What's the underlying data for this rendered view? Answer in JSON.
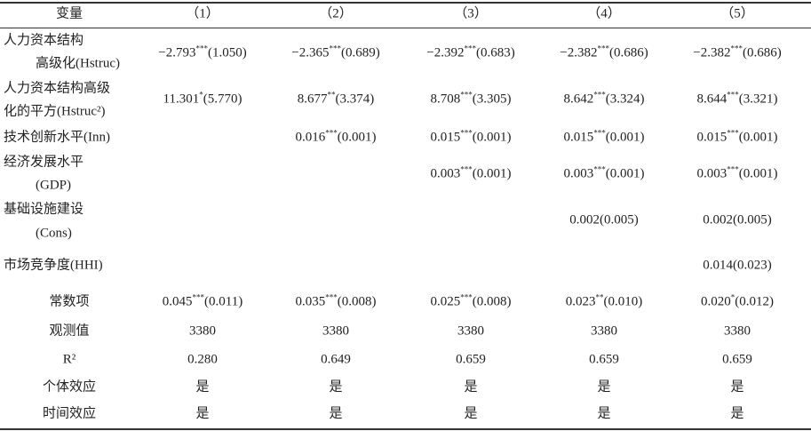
{
  "header": [
    "变量",
    "（1）",
    "（2）",
    "（3）",
    "（4）",
    "（5）"
  ],
  "rows": [
    {
      "name": [
        "人力资本结构",
        "高级化(Hstruc)"
      ],
      "cells": [
        {
          "coef": "−2.793",
          "stars": "***",
          "se": "(1.050)"
        },
        {
          "coef": "−2.365",
          "stars": "***",
          "se": "(0.689)"
        },
        {
          "coef": "−2.392",
          "stars": "***",
          "se": "(0.683)"
        },
        {
          "coef": "−2.382",
          "stars": "***",
          "se": "(0.686)"
        },
        {
          "coef": "−2.382",
          "stars": "***",
          "se": "(0.686)"
        }
      ]
    },
    {
      "name": [
        "人力资本结构高级",
        "化的平方(Hstruc²)"
      ],
      "cells": [
        {
          "coef": "11.301",
          "stars": "*",
          "se": "(5.770)"
        },
        {
          "coef": "8.677",
          "stars": "**",
          "se": "(3.374)"
        },
        {
          "coef": "8.708",
          "stars": "***",
          "se": "(3.305)"
        },
        {
          "coef": "8.642",
          "stars": "***",
          "se": "(3.324)"
        },
        {
          "coef": "8.644",
          "stars": "***",
          "se": "(3.321)"
        }
      ]
    },
    {
      "name": [
        "技术创新水平(Inn)"
      ],
      "cells": [
        null,
        {
          "coef": "0.016",
          "stars": "***",
          "se": "(0.001)"
        },
        {
          "coef": "0.015",
          "stars": "***",
          "se": "(0.001)"
        },
        {
          "coef": "0.015",
          "stars": "***",
          "se": "(0.001)"
        },
        {
          "coef": "0.015",
          "stars": "***",
          "se": "(0.001)"
        }
      ]
    },
    {
      "name": [
        "经济发展水平",
        "(GDP)"
      ],
      "cells": [
        null,
        null,
        {
          "coef": "0.003",
          "stars": "***",
          "se": "(0.001)"
        },
        {
          "coef": "0.003",
          "stars": "***",
          "se": "(0.001)"
        },
        {
          "coef": "0.003",
          "stars": "***",
          "se": "(0.001)"
        }
      ]
    },
    {
      "name": [
        "基础设施建设",
        "(Cons)"
      ],
      "cells": [
        null,
        null,
        null,
        {
          "coef": "0.002",
          "se": "(0.005)"
        },
        {
          "coef": "0.002",
          "se": "(0.005)"
        }
      ]
    },
    {
      "name": [
        "市场竞争度(HHI)"
      ],
      "cells": [
        null,
        null,
        null,
        null,
        {
          "coef": "0.014",
          "se": "(0.023)"
        }
      ]
    },
    {
      "name": [
        "常数项"
      ],
      "cells": [
        {
          "coef": "0.045",
          "stars": "***",
          "se": "(0.011)"
        },
        {
          "coef": "0.035",
          "stars": "***",
          "se": "(0.008)"
        },
        {
          "coef": "0.025",
          "stars": "***",
          "se": "(0.008)"
        },
        {
          "coef": "0.023",
          "stars": "**",
          "se": "(0.010)"
        },
        {
          "coef": "0.020",
          "stars": "*",
          "se": "(0.012)"
        }
      ]
    },
    {
      "name": [
        "观测值"
      ],
      "cells": [
        "3380",
        "3380",
        "3380",
        "3380",
        "3380"
      ]
    },
    {
      "name": [
        "R²"
      ],
      "cells": [
        "0.280",
        "0.649",
        "0.659",
        "0.659",
        "0.659"
      ]
    },
    {
      "name": [
        "个体效应"
      ],
      "cells": [
        "是",
        "是",
        "是",
        "是",
        "是"
      ]
    },
    {
      "name": [
        "时间效应"
      ],
      "cells": [
        "是",
        "是",
        "是",
        "是",
        "是"
      ]
    }
  ]
}
